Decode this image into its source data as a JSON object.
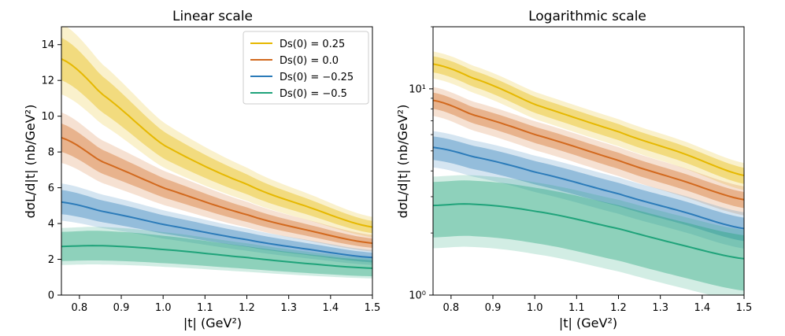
{
  "chart_data": [
    {
      "type": "line",
      "title": "Linear scale",
      "xlabel": "|t| (GeV²)",
      "ylabel": "dσL/d|t| (nb/GeV²)",
      "yscale": "linear",
      "xlim": [
        0.757,
        1.5
      ],
      "ylim": [
        0,
        15
      ],
      "xticks": [
        "0.8",
        "0.9",
        "1.0",
        "1.1",
        "1.2",
        "1.3",
        "1.4",
        "1.5"
      ],
      "yticks": [
        "0",
        "2",
        "4",
        "6",
        "8",
        "10",
        "12",
        "14"
      ],
      "grid": false,
      "legend": "top-right",
      "x": [
        0.757,
        0.85,
        1.0,
        1.2,
        1.35,
        1.5
      ],
      "series": [
        {
          "name": "Ds(0) = 0.25",
          "color": "#E6B800",
          "values": [
            13.2,
            11.3,
            8.4,
            6.2,
            4.9,
            3.8
          ],
          "inner_rel": 0.09,
          "outer_rel": 0.15
        },
        {
          "name": "Ds(0) = 0.0",
          "color": "#D2691E",
          "values": [
            8.8,
            7.5,
            6.0,
            4.5,
            3.6,
            2.9
          ],
          "inner_rel": 0.09,
          "outer_rel": 0.16
        },
        {
          "name": "Ds(0) = −0.25",
          "color": "#2B7BB9",
          "values": [
            5.2,
            4.7,
            3.95,
            3.1,
            2.55,
            2.1
          ],
          "inner_rel": 0.13,
          "outer_rel": 0.2
        },
        {
          "name": "Ds(0) = −0.5",
          "color": "#1FA37A",
          "values": [
            2.72,
            2.76,
            2.55,
            2.1,
            1.75,
            1.5
          ],
          "inner_rel": 0.3,
          "outer_rel": 0.38
        }
      ]
    },
    {
      "type": "line",
      "title": "Logarithmic scale",
      "xlabel": "|t| (GeV²)",
      "ylabel": "dσL/d|t| (nb/GeV²)",
      "yscale": "log",
      "xlim": [
        0.757,
        1.5
      ],
      "ylim": [
        1,
        20
      ],
      "xticks": [
        "0.8",
        "0.9",
        "1.0",
        "1.1",
        "1.2",
        "1.3",
        "1.4",
        "1.5"
      ],
      "yticks": [
        "10⁰",
        "10¹"
      ],
      "grid": false,
      "x": [
        0.757,
        0.85,
        1.0,
        1.2,
        1.35,
        1.5
      ],
      "series": [
        {
          "name": "Ds(0) = 0.25",
          "color": "#E6B800",
          "values": [
            13.2,
            11.3,
            8.4,
            6.2,
            4.9,
            3.8
          ],
          "inner_rel": 0.09,
          "outer_rel": 0.15
        },
        {
          "name": "Ds(0) = 0.0",
          "color": "#D2691E",
          "values": [
            8.8,
            7.5,
            6.0,
            4.5,
            3.6,
            2.9
          ],
          "inner_rel": 0.09,
          "outer_rel": 0.16
        },
        {
          "name": "Ds(0) = −0.25",
          "color": "#2B7BB9",
          "values": [
            5.2,
            4.7,
            3.95,
            3.1,
            2.55,
            2.1
          ],
          "inner_rel": 0.13,
          "outer_rel": 0.2
        },
        {
          "name": "Ds(0) = −0.5",
          "color": "#1FA37A",
          "values": [
            2.72,
            2.76,
            2.55,
            2.1,
            1.75,
            1.5
          ],
          "inner_rel": 0.3,
          "outer_rel": 0.38
        }
      ]
    }
  ]
}
